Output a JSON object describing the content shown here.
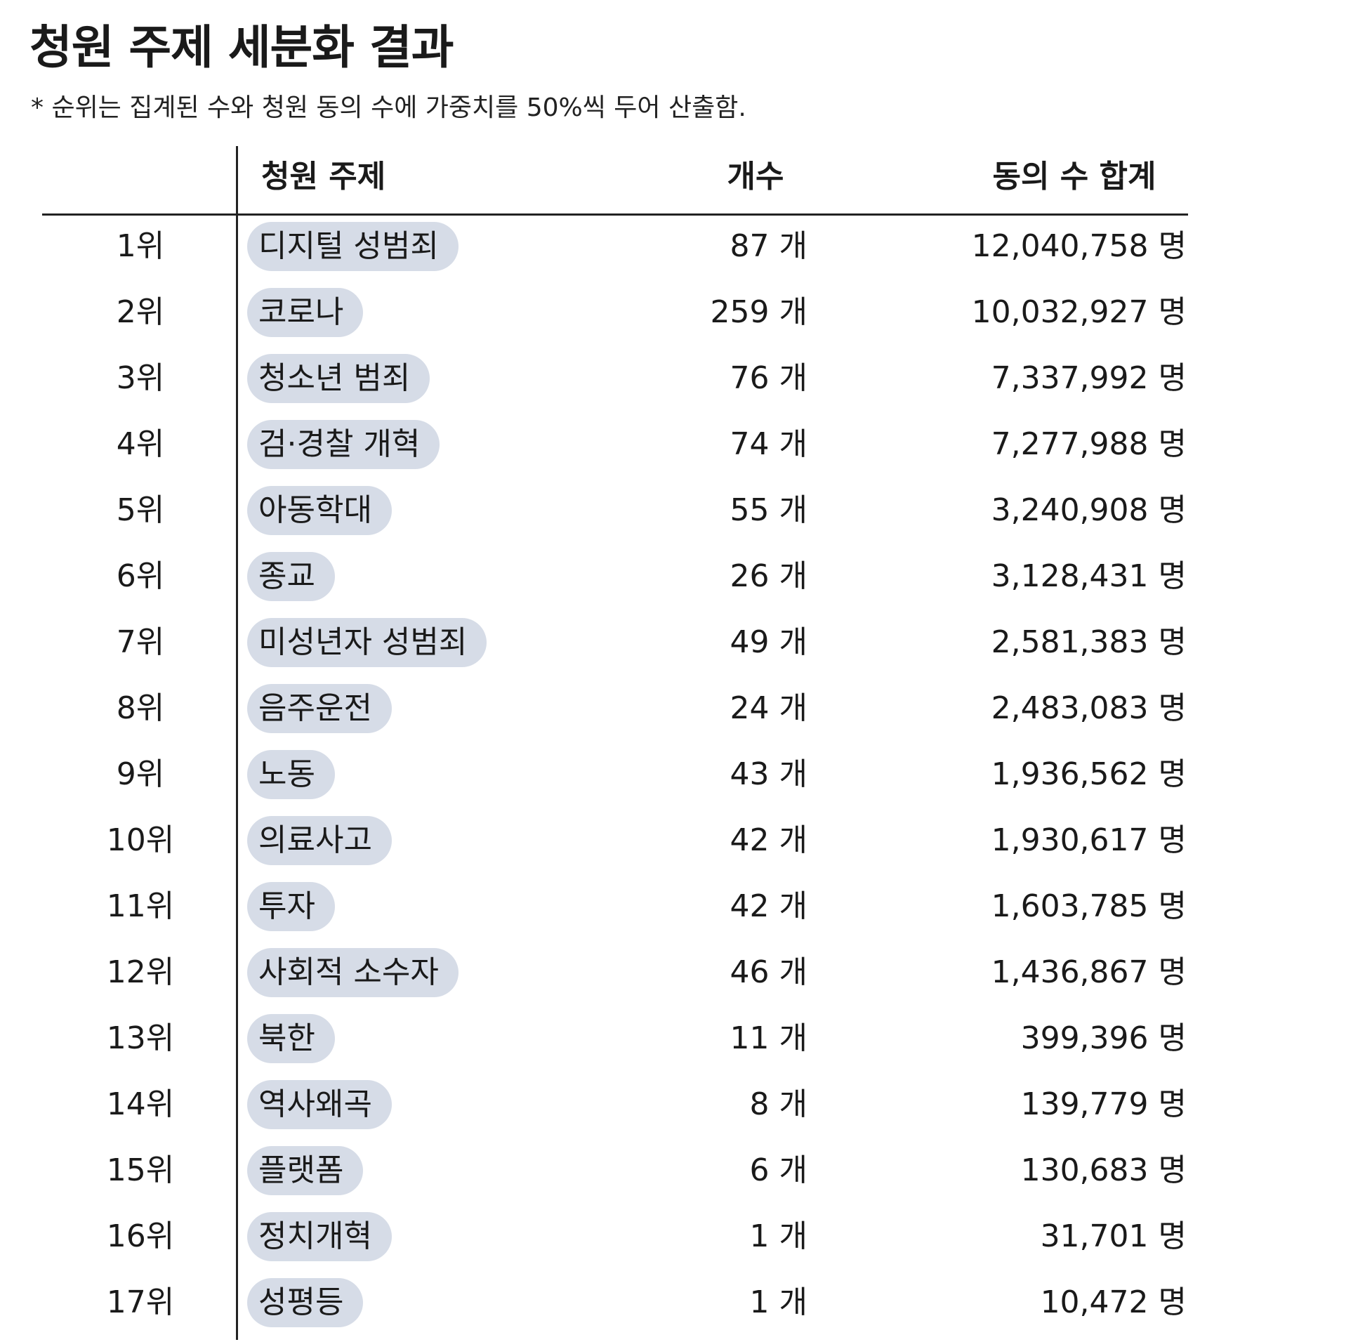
{
  "title": "청원 주제 세분화 결과",
  "subtitle": "* 순위는 집계된 수와 청원 동의 수에 가중치를 50%씩 두어 산출함.",
  "colors": {
    "pill_background": "#d6dce7",
    "text": "#1a1a1a",
    "rule": "#222222"
  },
  "chart_data": {
    "type": "table",
    "columns": [
      "",
      "청원 주제",
      "개수",
      "동의 수 합계"
    ],
    "count_unit": "개",
    "votes_unit": "명",
    "rows": [
      {
        "rank": "1위",
        "topic": "디지털 성범죄",
        "count": "87",
        "votes": "12,040,758"
      },
      {
        "rank": "2위",
        "topic": "코로나",
        "count": "259",
        "votes": "10,032,927"
      },
      {
        "rank": "3위",
        "topic": "청소년 범죄",
        "count": "76",
        "votes": "7,337,992"
      },
      {
        "rank": "4위",
        "topic": "검·경찰 개혁",
        "count": "74",
        "votes": "7,277,988"
      },
      {
        "rank": "5위",
        "topic": "아동학대",
        "count": "55",
        "votes": "3,240,908"
      },
      {
        "rank": "6위",
        "topic": "종교",
        "count": "26",
        "votes": "3,128,431"
      },
      {
        "rank": "7위",
        "topic": "미성년자 성범죄",
        "count": "49",
        "votes": "2,581,383"
      },
      {
        "rank": "8위",
        "topic": "음주운전",
        "count": "24",
        "votes": "2,483,083"
      },
      {
        "rank": "9위",
        "topic": "노동",
        "count": "43",
        "votes": "1,936,562"
      },
      {
        "rank": "10위",
        "topic": "의료사고",
        "count": "42",
        "votes": "1,930,617"
      },
      {
        "rank": "11위",
        "topic": "투자",
        "count": "42",
        "votes": "1,603,785"
      },
      {
        "rank": "12위",
        "topic": "사회적 소수자",
        "count": "46",
        "votes": "1,436,867"
      },
      {
        "rank": "13위",
        "topic": "북한",
        "count": "11",
        "votes": "399,396"
      },
      {
        "rank": "14위",
        "topic": "역사왜곡",
        "count": "8",
        "votes": "139,779"
      },
      {
        "rank": "15위",
        "topic": "플랫폼",
        "count": "6",
        "votes": "130,683"
      },
      {
        "rank": "16위",
        "topic": "정치개혁",
        "count": "1",
        "votes": "31,701"
      },
      {
        "rank": "17위",
        "topic": "성평등",
        "count": "1",
        "votes": "10,472"
      }
    ]
  }
}
